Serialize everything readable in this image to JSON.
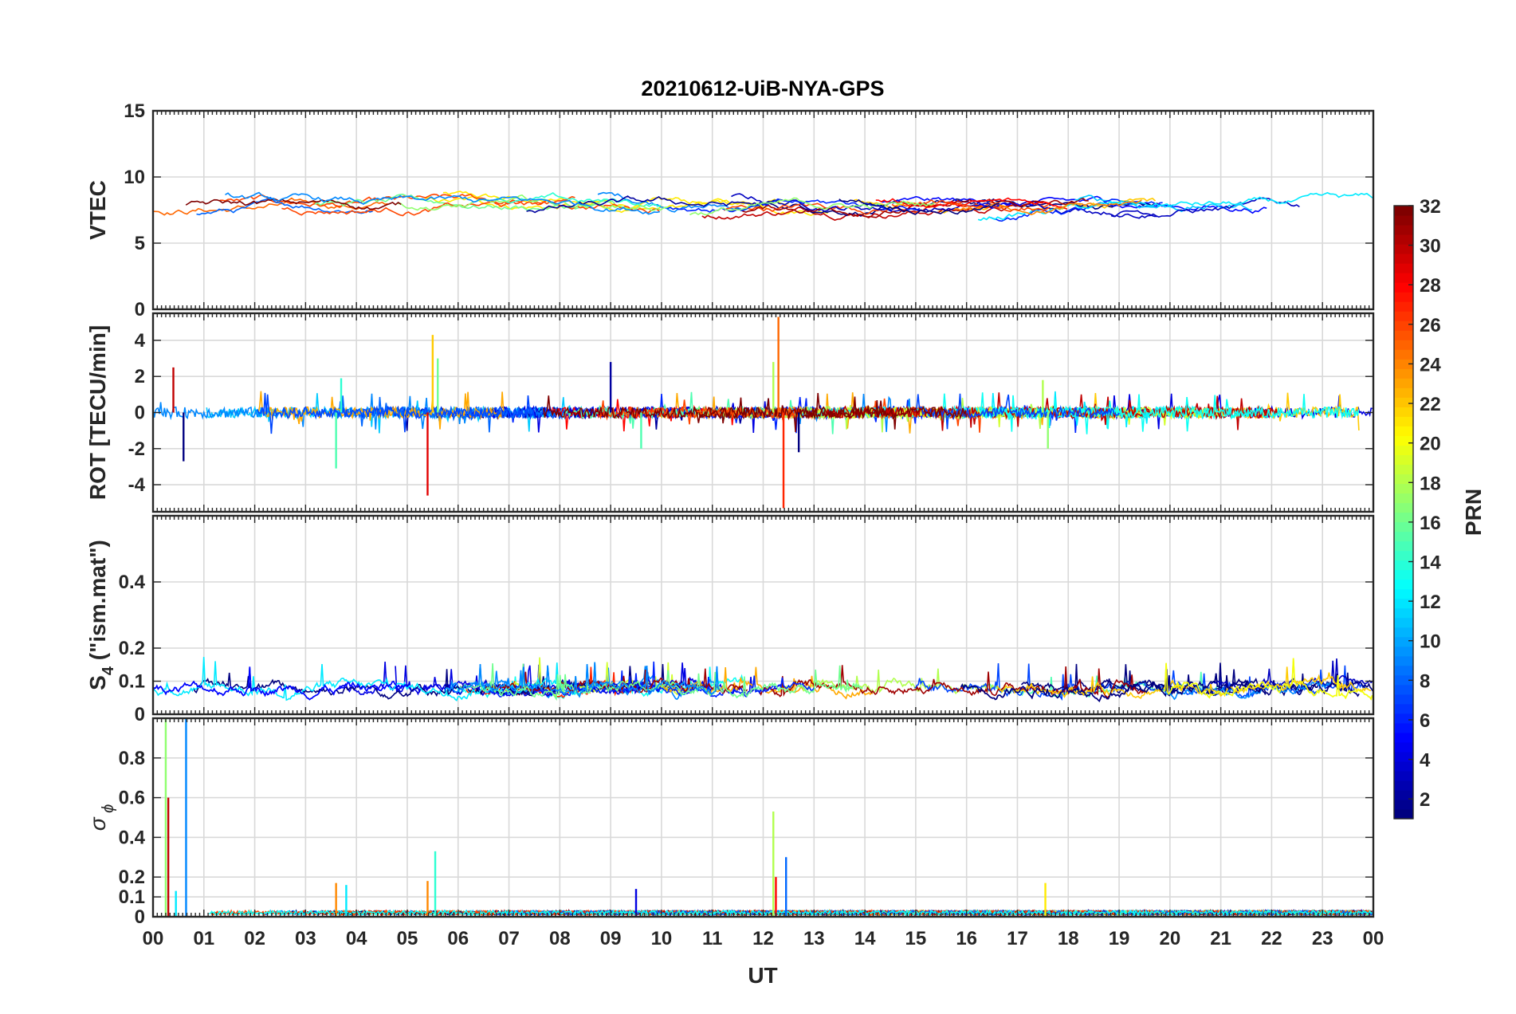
{
  "chart_data": {
    "title": "20210612-UiB-NYA-GPS",
    "type": "line",
    "x": {
      "label": "UT",
      "range_hours": [
        0,
        24
      ],
      "tick_labels": [
        "00",
        "01",
        "02",
        "03",
        "04",
        "05",
        "06",
        "07",
        "08",
        "09",
        "10",
        "11",
        "12",
        "13",
        "14",
        "15",
        "16",
        "17",
        "18",
        "19",
        "20",
        "21",
        "22",
        "23",
        "00"
      ]
    },
    "panels": [
      {
        "name": "vtec",
        "ylabel": "VTEC",
        "ylim": [
          0,
          15
        ],
        "yticks": [
          0,
          5,
          10,
          15
        ],
        "tick_labels": [
          "0",
          "5",
          "10",
          "15"
        ],
        "baseline": 7.8,
        "noise": 1.0,
        "style": "smooth"
      },
      {
        "name": "rot",
        "ylabel": "ROT [TECU/min]",
        "ylim": [
          -5.5,
          5.5
        ],
        "yticks": [
          -4,
          -2,
          0,
          2,
          4
        ],
        "tick_labels": [
          "-4",
          "-2",
          "0",
          "2",
          "4"
        ],
        "baseline": 0,
        "noise": 0.3,
        "style": "spiky",
        "spikes": [
          {
            "t": 0.4,
            "v": 2.5
          },
          {
            "t": 0.6,
            "v": -2.7
          },
          {
            "t": 3.6,
            "v": -3.1
          },
          {
            "t": 3.7,
            "v": 1.9
          },
          {
            "t": 5.4,
            "v": -4.6
          },
          {
            "t": 5.5,
            "v": 4.3
          },
          {
            "t": 5.6,
            "v": 3.0
          },
          {
            "t": 9.0,
            "v": 2.8
          },
          {
            "t": 9.6,
            "v": -2.0
          },
          {
            "t": 12.2,
            "v": 2.8
          },
          {
            "t": 12.3,
            "v": 5.3
          },
          {
            "t": 12.4,
            "v": -5.3
          },
          {
            "t": 12.7,
            "v": -2.2
          },
          {
            "t": 17.5,
            "v": 1.8
          },
          {
            "t": 17.6,
            "v": -2.0
          }
        ]
      },
      {
        "name": "s4",
        "ylabel": "S4 (\"ism.mat\")",
        "ylabel_main": "S",
        "ylabel_sub": "4",
        "ylabel_rest": " (\"ism.mat\")",
        "ylim": [
          0,
          0.6
        ],
        "yticks": [
          0,
          0.1,
          0.2,
          0.4
        ],
        "tick_labels": [
          "0",
          "0.1",
          "0.2",
          "0.4"
        ],
        "baseline": 0.08,
        "noise": 0.04,
        "style": "s4"
      },
      {
        "name": "sigma_phi",
        "ylabel": "σ ϕ",
        "ylabel_main": "σ",
        "ylabel_sub": "ϕ",
        "ylim": [
          0,
          1.0
        ],
        "yticks": [
          0,
          0.1,
          0.2,
          0.4,
          0.6,
          0.8
        ],
        "tick_labels": [
          "0",
          "0.1",
          "0.2",
          "0.4",
          "0.6",
          "0.8"
        ],
        "baseline": 0.02,
        "noise": 0.01,
        "style": "sigma",
        "spikes": [
          {
            "t": 0.25,
            "v": 1.0,
            "prn": 17
          },
          {
            "t": 0.3,
            "v": 0.6,
            "prn": 30
          },
          {
            "t": 0.65,
            "v": 1.0,
            "prn": 9
          },
          {
            "t": 0.45,
            "v": 0.13,
            "prn": 12
          },
          {
            "t": 3.6,
            "v": 0.17,
            "prn": 24
          },
          {
            "t": 3.8,
            "v": 0.16,
            "prn": 12
          },
          {
            "t": 5.4,
            "v": 0.18,
            "prn": 24
          },
          {
            "t": 5.55,
            "v": 0.33,
            "prn": 14
          },
          {
            "t": 9.5,
            "v": 0.14,
            "prn": 4
          },
          {
            "t": 12.2,
            "v": 0.53,
            "prn": 18
          },
          {
            "t": 12.25,
            "v": 0.2,
            "prn": 28
          },
          {
            "t": 12.45,
            "v": 0.3,
            "prn": 8
          },
          {
            "t": 17.55,
            "v": 0.17,
            "prn": 21
          }
        ]
      }
    ],
    "colorbar": {
      "label": "PRN",
      "range": [
        1,
        32
      ],
      "ticks": [
        2,
        4,
        6,
        8,
        10,
        12,
        14,
        16,
        18,
        20,
        22,
        24,
        26,
        28,
        30,
        32
      ],
      "colormap": "jet"
    },
    "grid": true
  }
}
